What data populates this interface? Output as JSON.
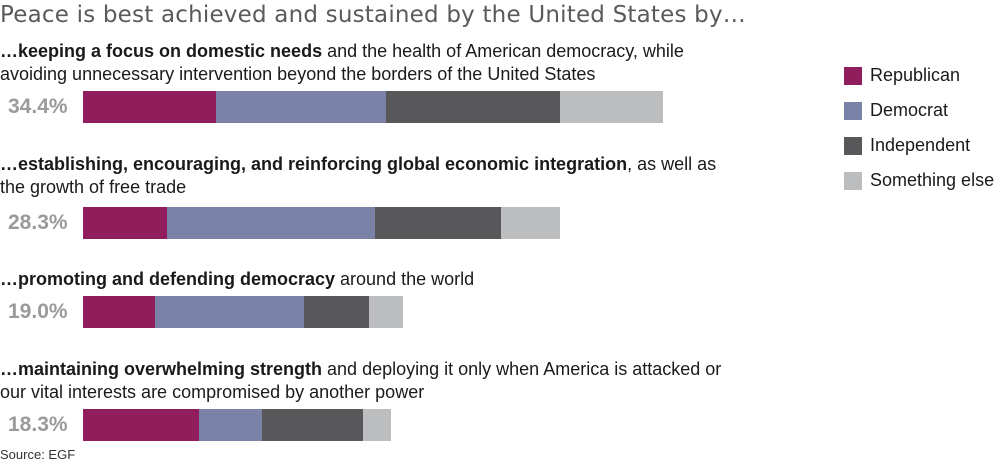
{
  "title": "Peace is best achieved and sustained by the United States by…",
  "source": "Source: EGF",
  "colors": {
    "Republican": "#911e5c",
    "Democrat": "#7a82a8",
    "Independent": "#58585a",
    "Something else": "#bcbdbf"
  },
  "legend": [
    {
      "label": "Republican",
      "color": "#911e5c"
    },
    {
      "label": "Democrat",
      "color": "#7a82a8"
    },
    {
      "label": "Independent",
      "color": "#58585a"
    },
    {
      "label": "Something else",
      "color": "#bcbdbf"
    }
  ],
  "rows": [
    {
      "bold": "…keeping a focus on domestic needs",
      "rest": " and the health of American democracy, while avoiding unnecessary intervention beyond the borders of the United States",
      "total": "34.4%"
    },
    {
      "bold": "…establishing, encouraging, and reinforcing global economic integration",
      "rest": ", as well as the growth of free trade",
      "total": "28.3%"
    },
    {
      "bold": "…promoting and defending democracy",
      "rest": " around the world",
      "total": "19.0%"
    },
    {
      "bold": "…maintaining overwhelming strength",
      "rest": " and deploying it only when America is attacked or our vital interests are compromised by another power",
      "total": "18.3%"
    }
  ],
  "chart_data": {
    "type": "bar",
    "orientation": "horizontal",
    "stacked": true,
    "title": "Peace is best achieved and sustained by the United States by…",
    "categories": [
      "…keeping a focus on domestic needs and the health of American democracy, while avoiding unnecessary intervention beyond the borders of the United States",
      "…establishing, encouraging, and reinforcing global economic integration, as well as the growth of free trade",
      "…promoting and defending democracy around the world",
      "…maintaining overwhelming strength and deploying it only when America is attacked or our vital interests are compromised by another power"
    ],
    "totals": [
      34.4,
      28.3,
      19.0,
      18.3
    ],
    "series": [
      {
        "name": "Republican",
        "values": [
          7.9,
          5.0,
          4.3,
          6.9
        ]
      },
      {
        "name": "Democrat",
        "values": [
          10.1,
          12.3,
          8.8,
          3.7
        ]
      },
      {
        "name": "Independent",
        "values": [
          10.3,
          7.5,
          3.9,
          6.0
        ]
      },
      {
        "name": "Something else",
        "values": [
          6.1,
          3.5,
          2.0,
          1.7
        ]
      }
    ],
    "xlabel": "",
    "ylabel": "",
    "grid": false,
    "legend_position": "right",
    "source": "Source: EGF"
  }
}
